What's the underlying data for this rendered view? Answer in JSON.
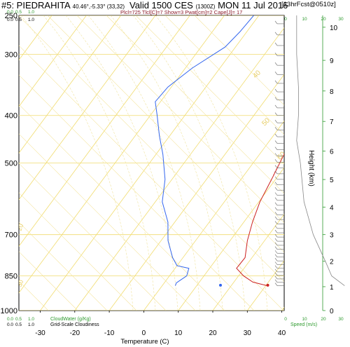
{
  "header": {
    "station": "#5: PIEDRAHITA",
    "coords": "40.46°,-5.33° (33,32)",
    "valid_main": "Valid 1500 CES",
    "valid_z": "(1300Z)",
    "valid_date": "MON 11 Jul 2016",
    "forecast": "[13hrFcst@0510z]",
    "params": "Plcl=725 Tlcl[C]=7 Show=3 Pwat[cm]=2 Cape[J]= 17"
  },
  "bottom": {
    "cloudwater_label": "CloudWater (g/Kg)",
    "cloudwater_ticks": [
      "0.0",
      "0.5",
      "1.0"
    ],
    "cloudiness_label": "Grid-Scale Cloudiness",
    "cloudiness_ticks": [
      "0.0",
      "0.5",
      "1.0"
    ],
    "speed_label": "Speed (m/s)",
    "speed_ticks": [
      "0",
      "10",
      "20",
      "30"
    ]
  },
  "chart_data": {
    "type": "line",
    "xlabel": "Temperature (C)",
    "ylabel_right": "Height (km)",
    "x_ticks": [
      -30,
      -20,
      -10,
      0,
      10,
      20,
      30,
      40
    ],
    "y_pressure_ticks": [
      250,
      300,
      400,
      500,
      700,
      850,
      1000
    ],
    "y_pressure_range": [
      250,
      1000
    ],
    "height_ticks": [
      0,
      1,
      2,
      3,
      4,
      5,
      6,
      7,
      8,
      9,
      10
    ],
    "series": [
      {
        "color": "#cc2222",
        "points": [
          [
            -2.2,
            250
          ],
          [
            -1.5,
            270
          ],
          [
            1.8,
            330
          ],
          [
            4.5,
            400
          ],
          [
            6.8,
            470
          ],
          [
            8.6,
            530
          ],
          [
            10.3,
            600
          ],
          [
            12.5,
            660
          ],
          [
            15,
            720
          ],
          [
            18,
            780
          ],
          [
            17.8,
            820
          ],
          [
            21.5,
            850
          ],
          [
            25.5,
            875
          ],
          [
            30.5,
            890
          ]
        ]
      },
      {
        "color": "#dd5555",
        "points": [
          [
            2.5,
            350
          ],
          [
            4.5,
            400
          ],
          [
            6.8,
            470
          ],
          [
            8.5,
            530
          ]
        ]
      },
      {
        "color": "#3366ee",
        "points": [
          [
            -31.5,
            250
          ],
          [
            -32,
            270
          ],
          [
            -33,
            290
          ],
          [
            -38,
            320
          ],
          [
            -41,
            350
          ],
          [
            -41.5,
            375
          ],
          [
            -38,
            400
          ],
          [
            -33,
            440
          ],
          [
            -28,
            480
          ],
          [
            -22,
            540
          ],
          [
            -18,
            600
          ],
          [
            -12,
            660
          ],
          [
            -8,
            720
          ],
          [
            -3,
            780
          ],
          [
            0,
            810
          ],
          [
            4,
            820
          ],
          [
            5,
            850
          ],
          [
            3.5,
            878
          ],
          [
            3.8,
            890
          ]
        ]
      }
    ],
    "surface_points": [
      {
        "color": "#cc2222",
        "t": 30.5,
        "p": 888
      },
      {
        "color": "#3366ee",
        "t": 16.8,
        "p": 888
      }
    ],
    "pressure_height_pairs": [
      [
        250,
        10.35
      ],
      [
        300,
        9.2
      ],
      [
        400,
        7.2
      ],
      [
        500,
        5.6
      ],
      [
        700,
        3.0
      ],
      [
        850,
        1.45
      ],
      [
        1000,
        0
      ]
    ],
    "isotherms": [
      -100,
      -90,
      -80,
      -70,
      -60,
      -50,
      -40,
      -30,
      -20,
      -10,
      0,
      10,
      20,
      30,
      40
    ],
    "dry_adiabat_labels": [
      "40",
      "50",
      "60"
    ],
    "moist_adiabat_labels": [
      "20",
      "30"
    ],
    "wind_profile": [
      [
        250,
        36
      ],
      [
        300,
        36
      ],
      [
        350,
        37
      ],
      [
        400,
        37
      ],
      [
        450,
        36
      ],
      [
        500,
        38
      ],
      [
        600,
        40
      ],
      [
        700,
        45
      ],
      [
        800,
        52
      ],
      [
        850,
        55
      ],
      [
        890,
        62
      ]
    ],
    "grid": true
  }
}
